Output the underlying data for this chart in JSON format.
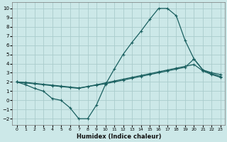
{
  "background_color": "#cce8e8",
  "grid_color": "#aacccc",
  "line_color": "#1a6060",
  "xlabel": "Humidex (Indice chaleur)",
  "xlim": [
    -0.5,
    23.5
  ],
  "ylim": [
    -2.7,
    10.7
  ],
  "xticks": [
    0,
    1,
    2,
    3,
    4,
    5,
    6,
    7,
    8,
    9,
    10,
    11,
    12,
    13,
    14,
    15,
    16,
    17,
    18,
    19,
    20,
    21,
    22,
    23
  ],
  "yticks": [
    -2,
    -1,
    0,
    1,
    2,
    3,
    4,
    5,
    6,
    7,
    8,
    9,
    10
  ],
  "line1_x": [
    0,
    1,
    2,
    3,
    4,
    5,
    6,
    7,
    8,
    9,
    10,
    11,
    12,
    13,
    14,
    15,
    16,
    17,
    18,
    19,
    20,
    21,
    22,
    23
  ],
  "line1_y": [
    2.0,
    1.7,
    1.3,
    1.0,
    0.2,
    0.0,
    -0.8,
    -2.0,
    -2.0,
    -0.5,
    1.7,
    3.4,
    5.0,
    6.3,
    7.5,
    8.8,
    10.0,
    10.0,
    9.2,
    6.5,
    4.5,
    3.3,
    3.0,
    2.8
  ],
  "line2_x": [
    0,
    1,
    2,
    3,
    4,
    5,
    6,
    7,
    8,
    9,
    10,
    11,
    12,
    13,
    14,
    15,
    16,
    17,
    18,
    19,
    20,
    21,
    22,
    23
  ],
  "line2_y": [
    2.0,
    1.9,
    1.8,
    1.7,
    1.6,
    1.5,
    1.4,
    1.3,
    1.5,
    1.7,
    1.9,
    2.1,
    2.3,
    2.5,
    2.7,
    2.9,
    3.1,
    3.3,
    3.5,
    3.7,
    3.9,
    3.2,
    2.8,
    2.5
  ],
  "line3_x": [
    0,
    1,
    2,
    3,
    4,
    5,
    6,
    7,
    8,
    9,
    10,
    11,
    12,
    13,
    14,
    15,
    16,
    17,
    18,
    19,
    20,
    21,
    22,
    23
  ],
  "line3_y": [
    2.0,
    1.95,
    1.85,
    1.75,
    1.65,
    1.55,
    1.45,
    1.35,
    1.5,
    1.65,
    1.8,
    2.0,
    2.2,
    2.4,
    2.6,
    2.8,
    3.0,
    3.2,
    3.4,
    3.6,
    4.5,
    3.3,
    2.9,
    2.6
  ]
}
